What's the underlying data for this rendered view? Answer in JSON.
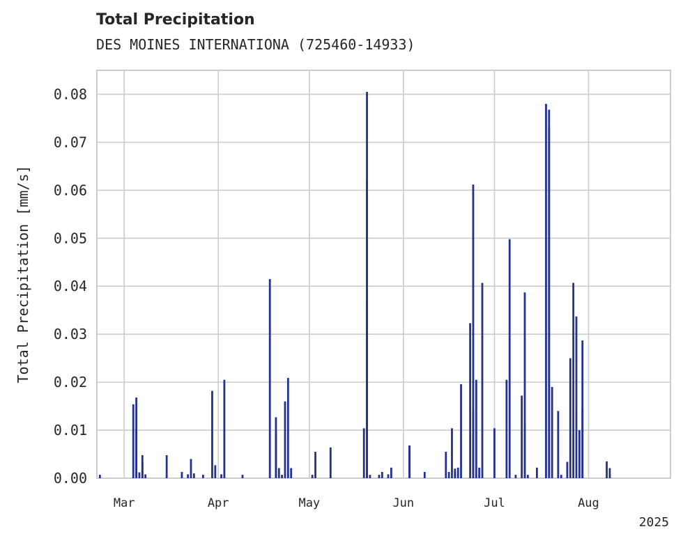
{
  "chart_data": {
    "type": "bar",
    "title": "Total Precipitation",
    "subtitle": "DES MOINES INTERNATIONA (725460-14933)",
    "xlabel": "",
    "ylabel": "Total Precipitation [mm/s]",
    "year_label": "2025",
    "x_range": [
      "2025-02-20",
      "2025-08-28"
    ],
    "ylim": [
      0,
      0.085
    ],
    "yticks": [
      0.0,
      0.01,
      0.02,
      0.03,
      0.04,
      0.05,
      0.06,
      0.07,
      0.08
    ],
    "ytick_labels": [
      "0.00",
      "0.01",
      "0.02",
      "0.03",
      "0.04",
      "0.05",
      "0.06",
      "0.07",
      "0.08"
    ],
    "xticks": [
      {
        "date": "2025-03-01",
        "label": "Mar"
      },
      {
        "date": "2025-04-01",
        "label": "Apr"
      },
      {
        "date": "2025-05-01",
        "label": "May"
      },
      {
        "date": "2025-06-01",
        "label": "Jun"
      },
      {
        "date": "2025-07-01",
        "label": "Jul"
      },
      {
        "date": "2025-08-01",
        "label": "Aug"
      }
    ],
    "grid": true,
    "bar_color": "#23318f",
    "series": [
      {
        "x": [
          "2025-02-21",
          "2025-03-04",
          "2025-03-05",
          "2025-03-05",
          "2025-03-06",
          "2025-03-07",
          "2025-03-07",
          "2025-03-08",
          "2025-03-15",
          "2025-03-20",
          "2025-03-22",
          "2025-03-23",
          "2025-03-24",
          "2025-03-27",
          "2025-03-30",
          "2025-03-31",
          "2025-04-02",
          "2025-04-03",
          "2025-04-09",
          "2025-04-18",
          "2025-04-20",
          "2025-04-20",
          "2025-04-21",
          "2025-04-22",
          "2025-04-23",
          "2025-04-24",
          "2025-04-25",
          "2025-05-02",
          "2025-05-03",
          "2025-05-08",
          "2025-05-19",
          "2025-05-20",
          "2025-05-20",
          "2025-05-20",
          "2025-05-21",
          "2025-05-24",
          "2025-05-25",
          "2025-05-27",
          "2025-05-28",
          "2025-06-03",
          "2025-06-03",
          "2025-06-08",
          "2025-06-15",
          "2025-06-16",
          "2025-06-17",
          "2025-06-18",
          "2025-06-18",
          "2025-06-19",
          "2025-06-20",
          "2025-06-23",
          "2025-06-24",
          "2025-06-24",
          "2025-06-25",
          "2025-06-26",
          "2025-06-27",
          "2025-07-01",
          "2025-07-05",
          "2025-07-06",
          "2025-07-08",
          "2025-07-10",
          "2025-07-11",
          "2025-07-11",
          "2025-07-12",
          "2025-07-15",
          "2025-07-18",
          "2025-07-19",
          "2025-07-19",
          "2025-07-20",
          "2025-07-22",
          "2025-07-23",
          "2025-07-25",
          "2025-07-26",
          "2025-07-27",
          "2025-07-28",
          "2025-07-29",
          "2025-07-30",
          "2025-07-30",
          "2025-08-07",
          "2025-08-08",
          "2025-08-08",
          "2025-08-10",
          "2025-08-13"
        ],
        "values": [
          0.0007,
          0.0154,
          0.0168,
          0.0104,
          0.0012,
          0.0034,
          0.0048,
          0.0008,
          0.0048,
          0.0013,
          0.0008,
          0.004,
          0.001,
          0.0007,
          0.0182,
          0.0027,
          0.0008,
          0.0205,
          0.0007,
          0.0415,
          0.0127,
          0.0099,
          0.0021,
          0.0007,
          0.016,
          0.0209,
          0.0021,
          0.0007,
          0.0055,
          0.0064,
          0.0104,
          0.0621,
          0.0805,
          0.0365,
          0.0007,
          0.0007,
          0.0013,
          0.0008,
          0.0022,
          0.0068,
          0.0068,
          0.0013,
          0.0055,
          0.0013,
          0.0104,
          0.002,
          0.0013,
          0.0022,
          0.0196,
          0.0323,
          0.0142,
          0.0612,
          0.0205,
          0.0022,
          0.0407,
          0.0104,
          0.0205,
          0.0498,
          0.0007,
          0.0172,
          0.0387,
          0.0112,
          0.0007,
          0.0022,
          0.078,
          0.0733,
          0.0768,
          0.019,
          0.014,
          0.0007,
          0.0034,
          0.025,
          0.0407,
          0.0337,
          0.01,
          0.0287,
          0.0145,
          0.0035,
          0.0021,
          0.0007,
          0.0,
          0.0
        ]
      }
    ]
  }
}
